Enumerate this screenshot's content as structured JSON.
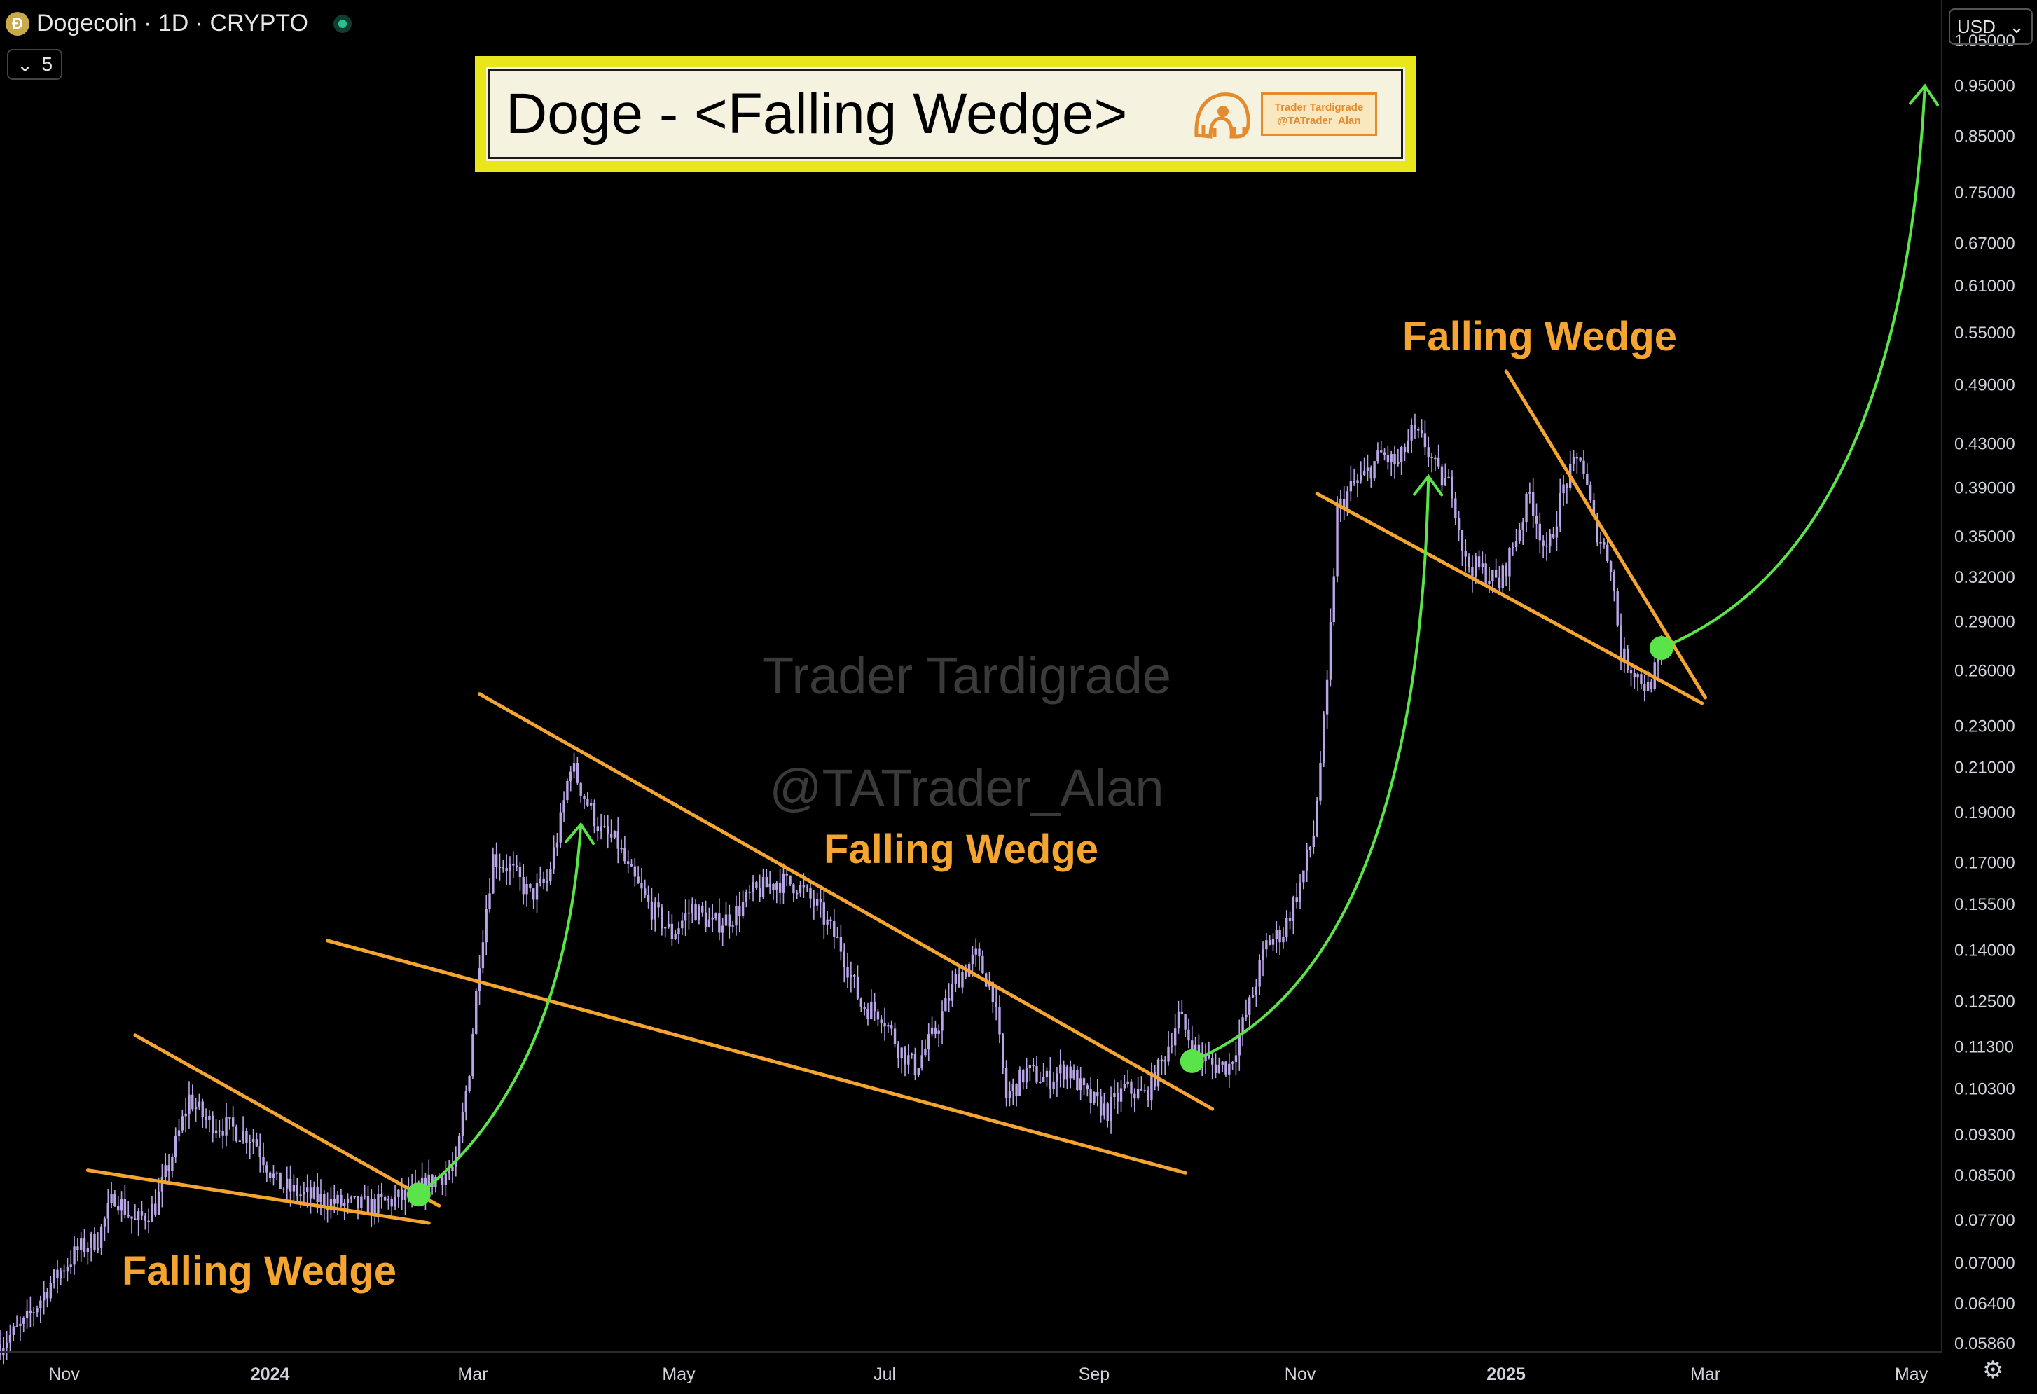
{
  "header": {
    "coin_icon": "dogecoin-logo-icon",
    "symbol_title": "Dogecoin · 1D · CRYPTO",
    "market_status_color": "#2bbf8a",
    "indicator_count": "5",
    "currency": "USD"
  },
  "title_box": {
    "title": "Doge - <Falling Wedge>",
    "badge_line1": "Trader Tardigrade",
    "badge_line2": "@TATrader_Alan"
  },
  "watermark": {
    "line1": "Trader Tardigrade",
    "line2": "@TATrader_Alan"
  },
  "colors": {
    "background": "#000000",
    "candle": "#b9a6e6",
    "trendline": "#f4a531",
    "arrow": "#5be34a",
    "annotation_text": "#f4a531"
  },
  "chart_data": {
    "type": "candlestick",
    "title": "Doge - <Falling Wedge>",
    "yscale": "log",
    "ylim": [
      0.0575,
      1.08
    ],
    "xlim": [
      "2023-10-13",
      "2025-05-10"
    ],
    "y_ticks": [
      "1.05000",
      "0.95000",
      "0.85000",
      "0.75000",
      "0.67000",
      "0.61000",
      "0.55000",
      "0.49000",
      "0.43000",
      "0.39000",
      "0.35000",
      "0.32000",
      "0.29000",
      "0.26000",
      "0.23000",
      "0.21000",
      "0.19000",
      "0.17000",
      "0.15500",
      "0.14000",
      "0.12500",
      "0.11300",
      "0.10300",
      "0.09300",
      "0.08500",
      "0.07700",
      "0.07000",
      "0.06400",
      "0.05860"
    ],
    "x_ticks": [
      {
        "label": "Nov",
        "date": "2023-11-01",
        "bold": false
      },
      {
        "label": "2024",
        "date": "2024-01-01",
        "bold": true
      },
      {
        "label": "Mar",
        "date": "2024-03-01",
        "bold": false
      },
      {
        "label": "May",
        "date": "2024-05-01",
        "bold": false
      },
      {
        "label": "Jul",
        "date": "2024-07-01",
        "bold": false
      },
      {
        "label": "Sep",
        "date": "2024-09-01",
        "bold": false
      },
      {
        "label": "Nov",
        "date": "2024-11-01",
        "bold": false
      },
      {
        "label": "2025",
        "date": "2025-01-01",
        "bold": true
      },
      {
        "label": "Mar",
        "date": "2025-03-01",
        "bold": false
      },
      {
        "label": "May",
        "date": "2025-05-01",
        "bold": false
      }
    ],
    "price_path": [
      [
        "2023-10-13",
        0.0585
      ],
      [
        "2023-10-20",
        0.061
      ],
      [
        "2023-10-28",
        0.067
      ],
      [
        "2023-11-05",
        0.072
      ],
      [
        "2023-11-11",
        0.074
      ],
      [
        "2023-11-16",
        0.0815
      ],
      [
        "2023-11-22",
        0.0765
      ],
      [
        "2023-11-28",
        0.0795
      ],
      [
        "2023-12-04",
        0.091
      ],
      [
        "2023-12-08",
        0.101
      ],
      [
        "2023-12-13",
        0.096
      ],
      [
        "2023-12-20",
        0.0945
      ],
      [
        "2023-12-27",
        0.0925
      ],
      [
        "2024-01-03",
        0.0835
      ],
      [
        "2024-01-10",
        0.0815
      ],
      [
        "2024-01-17",
        0.0805
      ],
      [
        "2024-01-24",
        0.0795
      ],
      [
        "2024-01-31",
        0.0795
      ],
      [
        "2024-02-07",
        0.0805
      ],
      [
        "2024-02-12",
        0.0815
      ],
      [
        "2024-02-19",
        0.0845
      ],
      [
        "2024-02-25",
        0.0865
      ],
      [
        "2024-02-29",
        0.108
      ],
      [
        "2024-03-03",
        0.138
      ],
      [
        "2024-03-07",
        0.172
      ],
      [
        "2024-03-12",
        0.168
      ],
      [
        "2024-03-18",
        0.158
      ],
      [
        "2024-03-23",
        0.163
      ],
      [
        "2024-03-27",
        0.186
      ],
      [
        "2024-03-30",
        0.212
      ],
      [
        "2024-04-03",
        0.197
      ],
      [
        "2024-04-08",
        0.182
      ],
      [
        "2024-04-13",
        0.177
      ],
      [
        "2024-04-16",
        0.167
      ],
      [
        "2024-04-22",
        0.155
      ],
      [
        "2024-04-29",
        0.145
      ],
      [
        "2024-05-05",
        0.154
      ],
      [
        "2024-05-11",
        0.148
      ],
      [
        "2024-05-17",
        0.151
      ],
      [
        "2024-05-23",
        0.159
      ],
      [
        "2024-05-30",
        0.163
      ],
      [
        "2024-06-05",
        0.162
      ],
      [
        "2024-06-11",
        0.154
      ],
      [
        "2024-06-18",
        0.141
      ],
      [
        "2024-06-24",
        0.124
      ],
      [
        "2024-06-30",
        0.122
      ],
      [
        "2024-07-05",
        0.113
      ],
      [
        "2024-07-10",
        0.108
      ],
      [
        "2024-07-16",
        0.117
      ],
      [
        "2024-07-22",
        0.131
      ],
      [
        "2024-07-28",
        0.138
      ],
      [
        "2024-08-02",
        0.128
      ],
      [
        "2024-08-06",
        0.101
      ],
      [
        "2024-08-12",
        0.107
      ],
      [
        "2024-08-18",
        0.105
      ],
      [
        "2024-08-24",
        0.108
      ],
      [
        "2024-08-30",
        0.101
      ],
      [
        "2024-09-05",
        0.098
      ],
      [
        "2024-09-10",
        0.103
      ],
      [
        "2024-09-16",
        0.1015
      ],
      [
        "2024-09-21",
        0.109
      ],
      [
        "2024-09-26",
        0.121
      ],
      [
        "2024-10-01",
        0.112
      ],
      [
        "2024-10-06",
        0.1085
      ],
      [
        "2024-10-11",
        0.1085
      ],
      [
        "2024-10-17",
        0.124
      ],
      [
        "2024-10-22",
        0.142
      ],
      [
        "2024-10-27",
        0.146
      ],
      [
        "2024-11-01",
        0.162
      ],
      [
        "2024-11-05",
        0.181
      ],
      [
        "2024-11-09",
        0.25
      ],
      [
        "2024-11-12",
        0.37
      ],
      [
        "2024-11-16",
        0.39
      ],
      [
        "2024-11-20",
        0.4
      ],
      [
        "2024-11-25",
        0.42
      ],
      [
        "2024-11-30",
        0.41
      ],
      [
        "2024-12-04",
        0.44
      ],
      [
        "2024-12-08",
        0.43
      ],
      [
        "2024-12-12",
        0.4
      ],
      [
        "2024-12-16",
        0.39
      ],
      [
        "2024-12-20",
        0.33
      ],
      [
        "2024-12-25",
        0.325
      ],
      [
        "2024-12-30",
        0.315
      ],
      [
        "2025-01-04",
        0.35
      ],
      [
        "2025-01-08",
        0.385
      ],
      [
        "2025-01-13",
        0.335
      ],
      [
        "2025-01-18",
        0.39
      ],
      [
        "2025-01-23",
        0.42
      ],
      [
        "2025-01-27",
        0.36
      ],
      [
        "2025-02-01",
        0.33
      ],
      [
        "2025-02-04",
        0.27
      ],
      [
        "2025-02-08",
        0.26
      ],
      [
        "2025-02-12",
        0.25
      ],
      [
        "2025-02-16",
        0.27
      ]
    ],
    "trendlines": [
      {
        "from": [
          "2023-11-08",
          0.086
        ],
        "to": [
          "2024-02-17",
          0.0765
        ]
      },
      {
        "from": [
          "2023-11-22",
          0.116
        ],
        "to": [
          "2024-02-20",
          0.0795
        ]
      },
      {
        "from": [
          "2024-01-18",
          0.143
        ],
        "to": [
          "2024-09-28",
          0.0855
        ]
      },
      {
        "from": [
          "2024-03-03",
          0.247
        ],
        "to": [
          "2024-10-06",
          0.0985
        ]
      },
      {
        "from": [
          "2024-11-06",
          0.385
        ],
        "to": [
          "2025-02-28",
          0.242
        ]
      },
      {
        "from": [
          "2025-01-01",
          0.505
        ],
        "to": [
          "2025-02-29",
          0.245
        ]
      }
    ],
    "breakout_points": [
      [
        "2024-02-14",
        0.0815
      ],
      [
        "2024-09-30",
        0.1095
      ],
      [
        "2025-02-16",
        0.2735
      ]
    ],
    "arrows": [
      {
        "path": [
          [
            "2024-02-14",
            0.0815
          ],
          [
            "2024-03-28",
            0.105
          ],
          [
            "2024-04-02",
            0.185
          ]
        ]
      },
      {
        "path": [
          [
            "2024-09-30",
            0.1095
          ],
          [
            "2024-12-06",
            0.135
          ],
          [
            "2024-12-09",
            0.4
          ]
        ]
      },
      {
        "path": [
          [
            "2025-02-16",
            0.2735
          ],
          [
            "2025-04-28",
            0.34
          ],
          [
            "2025-05-05",
            0.95
          ]
        ]
      }
    ],
    "annotations": [
      {
        "text": "Falling Wedge"
      },
      {
        "text": "Falling Wedge"
      },
      {
        "text": "Falling Wedge"
      }
    ]
  }
}
